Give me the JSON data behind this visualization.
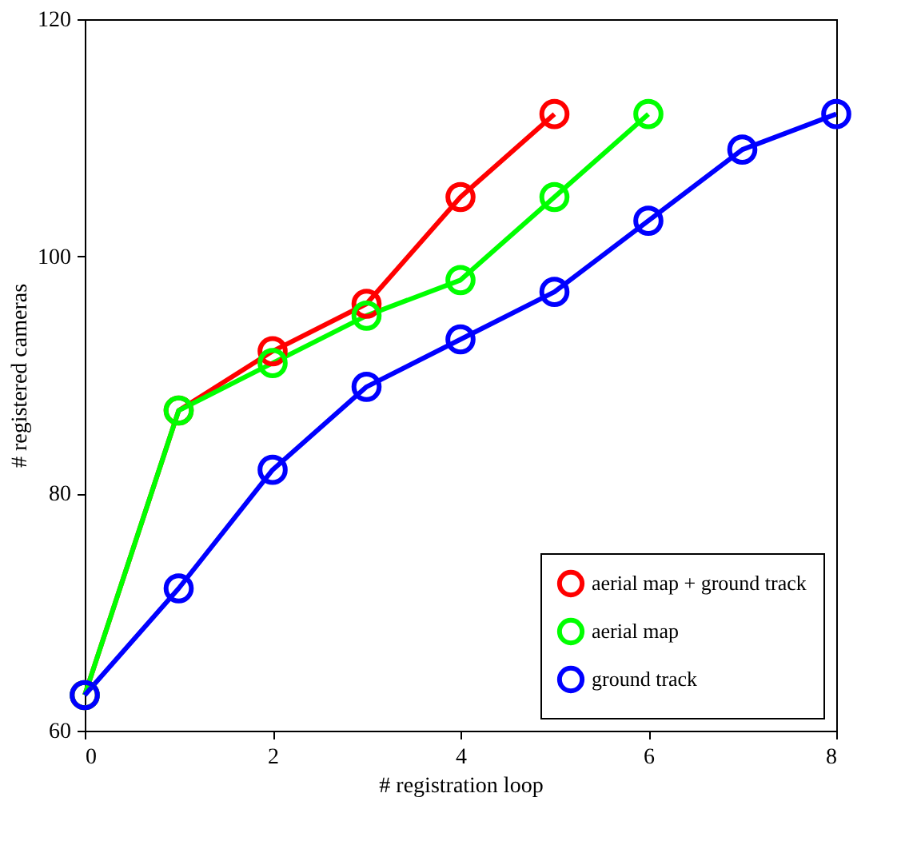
{
  "chart_data": {
    "type": "line",
    "xlabel": "# registration loop",
    "ylabel": "# registered cameras",
    "xlim": [
      0,
      8
    ],
    "xticks": [
      0,
      2,
      4,
      6,
      8
    ],
    "ylim": [
      60,
      120
    ],
    "yticks": [
      60,
      80,
      100,
      120
    ],
    "grid": false,
    "legend": "bottom right",
    "marker": "circle",
    "line_style": "solid",
    "series": [
      {
        "name": "aerial map + ground track",
        "color": "#ff0000",
        "x": [
          0,
          1,
          2,
          3,
          4,
          5
        ],
        "values": [
          63,
          87,
          92,
          96,
          105,
          112
        ]
      },
      {
        "name": "aerial map",
        "color": "#00ff00",
        "x": [
          0,
          1,
          2,
          3,
          4,
          5,
          6
        ],
        "values": [
          63,
          87,
          91,
          95,
          98,
          105,
          112
        ]
      },
      {
        "name": "ground track",
        "color": "#0000ff",
        "x": [
          0,
          1,
          2,
          3,
          4,
          5,
          6,
          7,
          8
        ],
        "values": [
          63,
          72,
          82,
          89,
          93,
          97,
          103,
          109,
          112
        ]
      }
    ]
  }
}
